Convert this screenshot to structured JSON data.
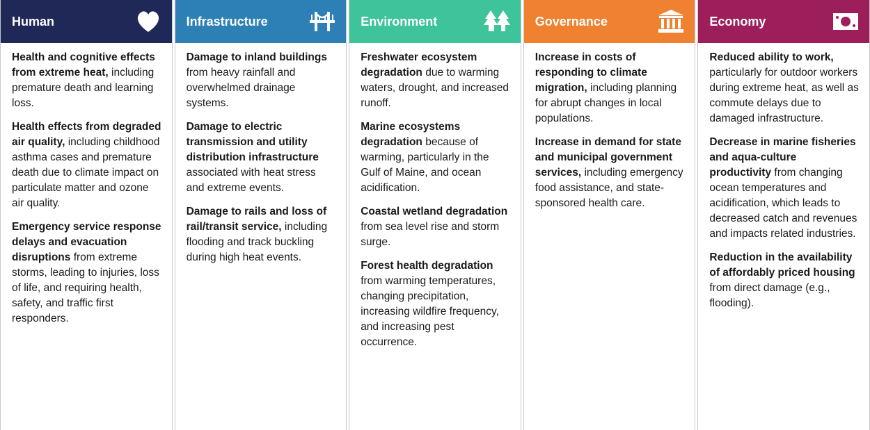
{
  "columns": [
    {
      "title": "Human",
      "items": [
        {
          "bold": "Health and cognitive effects from extreme heat,",
          "text": "including premature death and learning loss."
        },
        {
          "bold": "Health effects from degraded air quality,",
          "text": "including childhood asthma cases and premature death due to climate impact on particulate matter and ozone air quality."
        },
        {
          "bold": "Emergency service response delays and evacuation disruptions",
          "text": "from extreme storms, leading to injuries, loss of life, and requiring health, safety, and traffic first responders."
        }
      ]
    },
    {
      "title": "Infrastructure",
      "items": [
        {
          "bold": "Damage to inland buildings",
          "text": "from heavy rainfall and overwhelmed drainage systems."
        },
        {
          "bold": "Damage to electric transmission and utility distribution infrastructure",
          "text": "associated with heat stress and extreme events."
        },
        {
          "bold": "Damage to rails and loss of rail/transit service,",
          "text": "including flooding and track buckling during high heat events."
        }
      ]
    },
    {
      "title": "Environment",
      "items": [
        {
          "bold": "Freshwater ecosystem degradation",
          "text": "due to warming waters, drought, and increased runoff."
        },
        {
          "bold": "Marine ecosystems degradation",
          "text": "because of warming, particularly in the Gulf of Maine, and ocean acidification."
        },
        {
          "bold": "Coastal wetland degradation",
          "text": "from sea level rise and storm surge."
        },
        {
          "bold": "Forest health degradation",
          "text": "from warming temperatures, changing precipitation, increasing wildfire frequency, and increasing pest occurrence."
        }
      ]
    },
    {
      "title": "Governance",
      "items": [
        {
          "bold": "Increase in costs of responding to climate migration,",
          "text": "including planning for abrupt changes in local populations."
        },
        {
          "bold": "Increase in demand for state and municipal government services,",
          "text": "including emergency food assistance, and state-sponsored health care."
        }
      ]
    },
    {
      "title": "Economy",
      "items": [
        {
          "bold": "Reduced ability to work,",
          "text": "particularly for outdoor workers during extreme heat, as well as commute delays due to damaged infrastructure."
        },
        {
          "bold": "Decrease in marine fisheries and aqua-culture productivity",
          "text": "from changing ocean temperatures and acidification, which leads to decreased catch and revenues and impacts related industries."
        },
        {
          "bold": "Reduction in the availability of affordably priced housing",
          "text": "from direct damage (e.g., flooding)."
        }
      ]
    }
  ]
}
